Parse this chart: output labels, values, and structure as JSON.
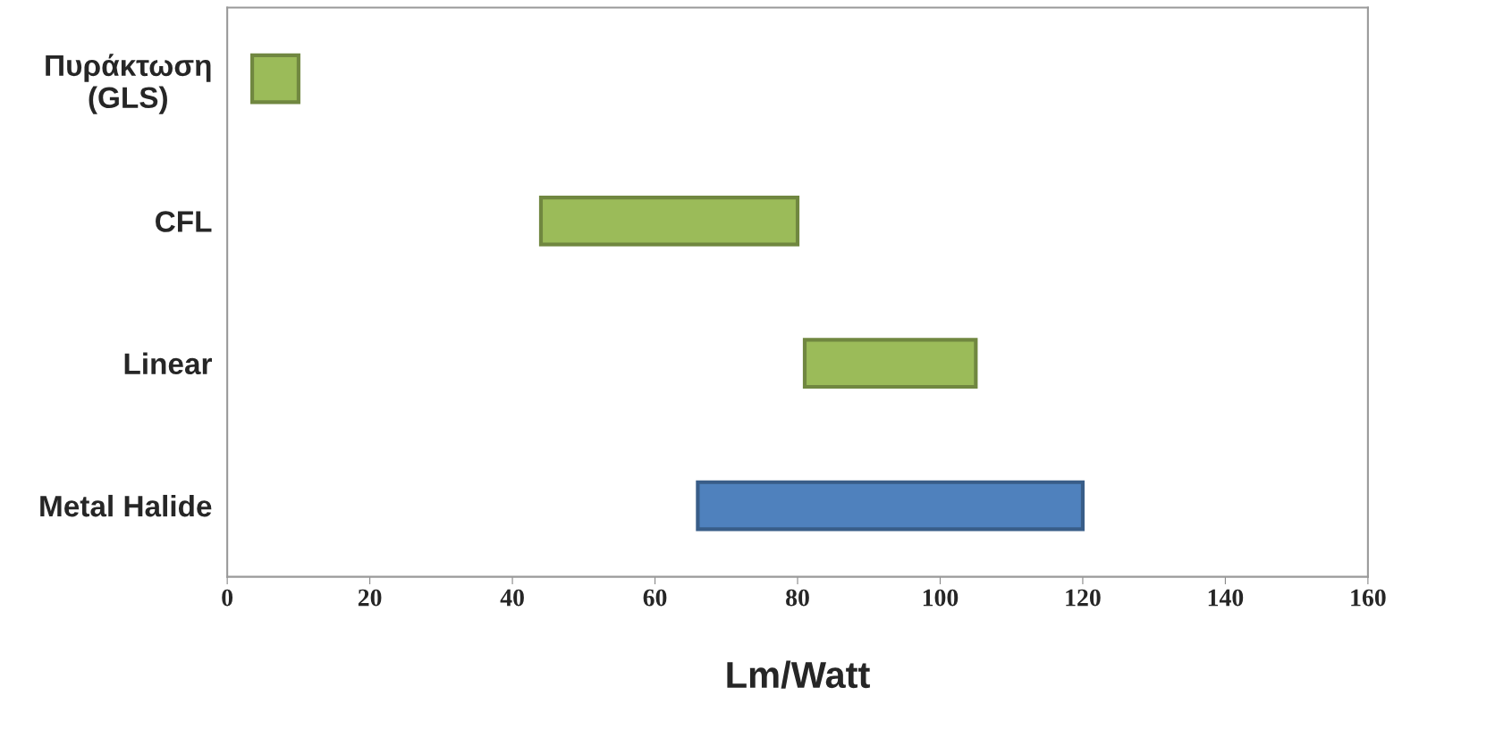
{
  "chart_data": {
    "type": "bar",
    "orientation": "horizontal",
    "categories": [
      "Πυράκτωση\n(GLS)",
      "CFL",
      "Linear",
      "Metal Halide"
    ],
    "base": [
      3.5,
      44,
      81,
      66
    ],
    "values": [
      6.5,
      36,
      24,
      54
    ],
    "colors": [
      "#9bbb59",
      "#9bbb59",
      "#9bbb59",
      "#4f81bd"
    ],
    "xlabel": "Lm/Watt",
    "xlim": [
      0,
      160
    ],
    "xticks": [
      0,
      20,
      40,
      60,
      80,
      100,
      120,
      140,
      160
    ],
    "grid": false,
    "legend": false
  }
}
